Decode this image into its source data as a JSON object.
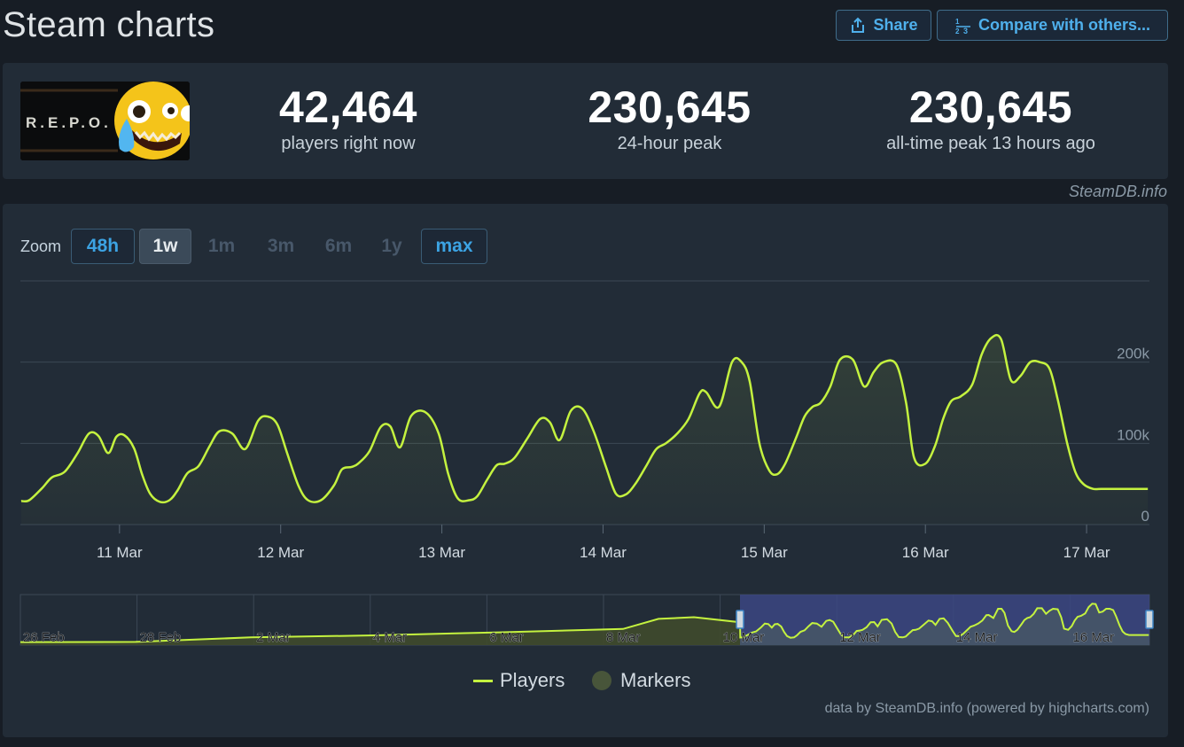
{
  "header": {
    "title": "Steam charts",
    "share_label": "Share",
    "compare_label": "Compare with others..."
  },
  "game": {
    "logo_text": "R.E.P.O."
  },
  "stats": {
    "players_now": "42,464",
    "players_now_label": "players right now",
    "peak_24h": "230,645",
    "peak_24h_label": "24-hour peak",
    "all_time_peak": "230,645",
    "all_time_peak_label": "all-time peak 13 hours ago"
  },
  "credit_top": "SteamDB.info",
  "zoom": {
    "label": "Zoom",
    "options": [
      {
        "label": "48h",
        "state": "enabled"
      },
      {
        "label": "1w",
        "state": "active"
      },
      {
        "label": "1m",
        "state": "disabled"
      },
      {
        "label": "3m",
        "state": "disabled"
      },
      {
        "label": "6m",
        "state": "disabled"
      },
      {
        "label": "1y",
        "state": "disabled"
      },
      {
        "label": "max",
        "state": "enabled"
      }
    ]
  },
  "colors": {
    "series_line": "#c4f23f",
    "marker": "#48553a",
    "navigator_selection": "#3b4683",
    "grid": "#3c4855"
  },
  "chart_data": {
    "type": "line",
    "y_ticks": [
      "0",
      "100k",
      "200k"
    ],
    "y_tick_values": [
      0,
      100000,
      200000
    ],
    "ylim": [
      0,
      300000
    ],
    "x_tick_labels": [
      "11 Mar",
      "12 Mar",
      "13 Mar",
      "14 Mar",
      "15 Mar",
      "16 Mar",
      "17 Mar"
    ],
    "x_tick_days": [
      1,
      2,
      3,
      4,
      5,
      6,
      7
    ],
    "xlim_days": [
      0.385,
      7.39
    ],
    "series": [
      {
        "name": "Players",
        "x_days": [
          0.39,
          0.44,
          0.52,
          0.58,
          0.66,
          0.74,
          0.81,
          0.87,
          0.93,
          0.98,
          1.03,
          1.09,
          1.14,
          1.19,
          1.25,
          1.31,
          1.36,
          1.42,
          1.49,
          1.56,
          1.62,
          1.7,
          1.78,
          1.86,
          1.92,
          1.98,
          2.04,
          2.11,
          2.17,
          2.25,
          2.33,
          2.38,
          2.44,
          2.48,
          2.55,
          2.62,
          2.68,
          2.74,
          2.81,
          2.9,
          2.98,
          3.04,
          3.1,
          3.17,
          3.22,
          3.28,
          3.34,
          3.39,
          3.45,
          3.53,
          3.61,
          3.67,
          3.73,
          3.8,
          3.87,
          3.94,
          4.02,
          4.08,
          4.14,
          4.2,
          4.27,
          4.33,
          4.39,
          4.46,
          4.53,
          4.6,
          4.64,
          4.72,
          4.8,
          4.86,
          4.91,
          4.97,
          5.03,
          5.08,
          5.13,
          5.2,
          5.25,
          5.3,
          5.35,
          5.41,
          5.47,
          5.55,
          5.62,
          5.68,
          5.74,
          5.82,
          5.88,
          5.93,
          6.0,
          6.06,
          6.11,
          6.16,
          6.22,
          6.29,
          6.35,
          6.41,
          6.47,
          6.53,
          6.59,
          6.65,
          6.71,
          6.77,
          6.82,
          6.88,
          6.93,
          6.98,
          7.04,
          7.09,
          7.15,
          7.21,
          7.27,
          7.33,
          7.38
        ],
        "values": [
          29000,
          30000,
          45000,
          58000,
          65000,
          88000,
          112000,
          109000,
          88000,
          108000,
          110000,
          94000,
          62000,
          38000,
          28000,
          30000,
          42000,
          63000,
          72000,
          97000,
          115000,
          112000,
          93000,
          128000,
          133000,
          123000,
          88000,
          48000,
          30000,
          30000,
          48000,
          68000,
          71000,
          75000,
          90000,
          120000,
          121000,
          95000,
          134000,
          138000,
          112000,
          62000,
          32000,
          30000,
          35000,
          55000,
          73000,
          75000,
          82000,
          106000,
          130000,
          126000,
          104000,
          140000,
          143000,
          116000,
          70000,
          38000,
          37000,
          50000,
          73000,
          93000,
          100000,
          112000,
          130000,
          162000,
          163000,
          145000,
          200000,
          200000,
          176000,
          100000,
          67000,
          62000,
          75000,
          108000,
          133000,
          145000,
          150000,
          170000,
          203000,
          203000,
          170000,
          188000,
          200000,
          197000,
          150000,
          82000,
          75000,
          97000,
          130000,
          152000,
          158000,
          172000,
          210000,
          230000,
          228000,
          178000,
          183000,
          200000,
          200000,
          192000,
          155000,
          100000,
          65000,
          50000,
          44000,
          44000,
          44000,
          44000,
          44000,
          44000,
          44000
        ]
      }
    ],
    "navigator": {
      "x_tick_labels": [
        "26 Feb",
        "28 Feb",
        "2 Mar",
        "4 Mar",
        "6 Mar",
        "8 Mar",
        "10 Mar",
        "12 Mar",
        "14 Mar",
        "16 Mar"
      ],
      "selected_range": [
        "10 Mar",
        "17 Mar"
      ]
    },
    "legend": [
      {
        "name": "Players",
        "symbol": "line"
      },
      {
        "name": "Markers",
        "symbol": "dot"
      }
    ],
    "legend_position": "bottom-center",
    "grid": true
  },
  "credit_bottom": "data by SteamDB.info (powered by highcharts.com)"
}
